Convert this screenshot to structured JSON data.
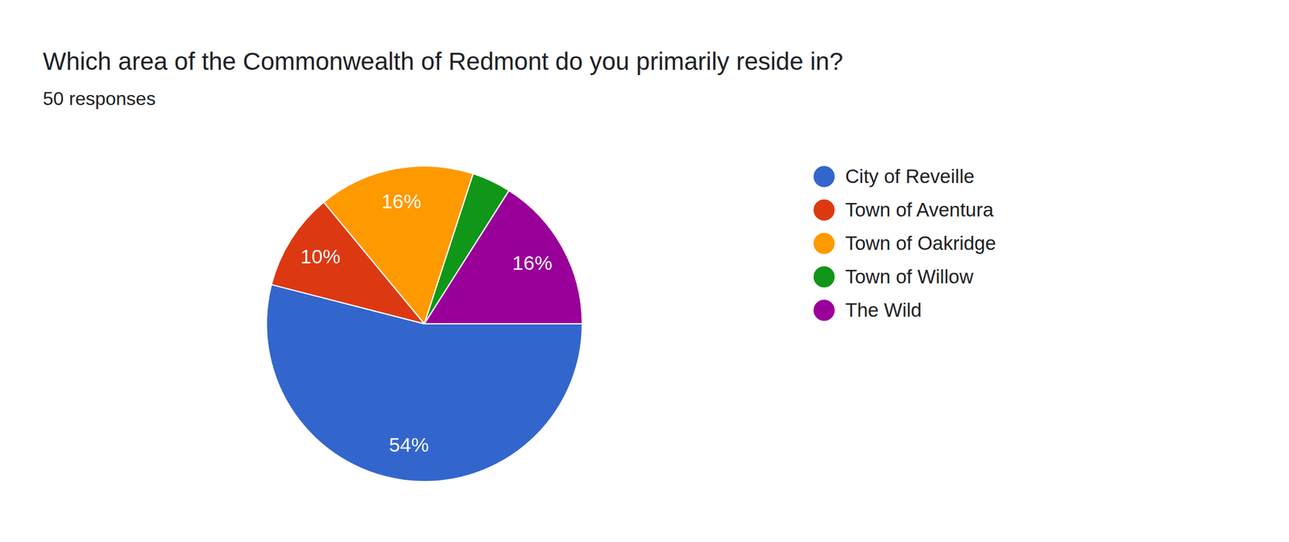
{
  "chart_data": {
    "type": "pie",
    "title": "Which area of the Commonwealth of Redmont do you primarily reside in?",
    "subtitle": "50 responses",
    "categories": [
      "City of Reveille",
      "Town of Aventura",
      "Town of Oakridge",
      "Town of Willow",
      "The Wild"
    ],
    "values": [
      54,
      10,
      16,
      4,
      16
    ],
    "value_labels": [
      "54%",
      "10%",
      "16%",
      null,
      "16%"
    ],
    "colors": [
      "#3366cc",
      "#dc3912",
      "#ff9900",
      "#109618",
      "#990099"
    ],
    "data_labels": true,
    "legend": "right"
  }
}
